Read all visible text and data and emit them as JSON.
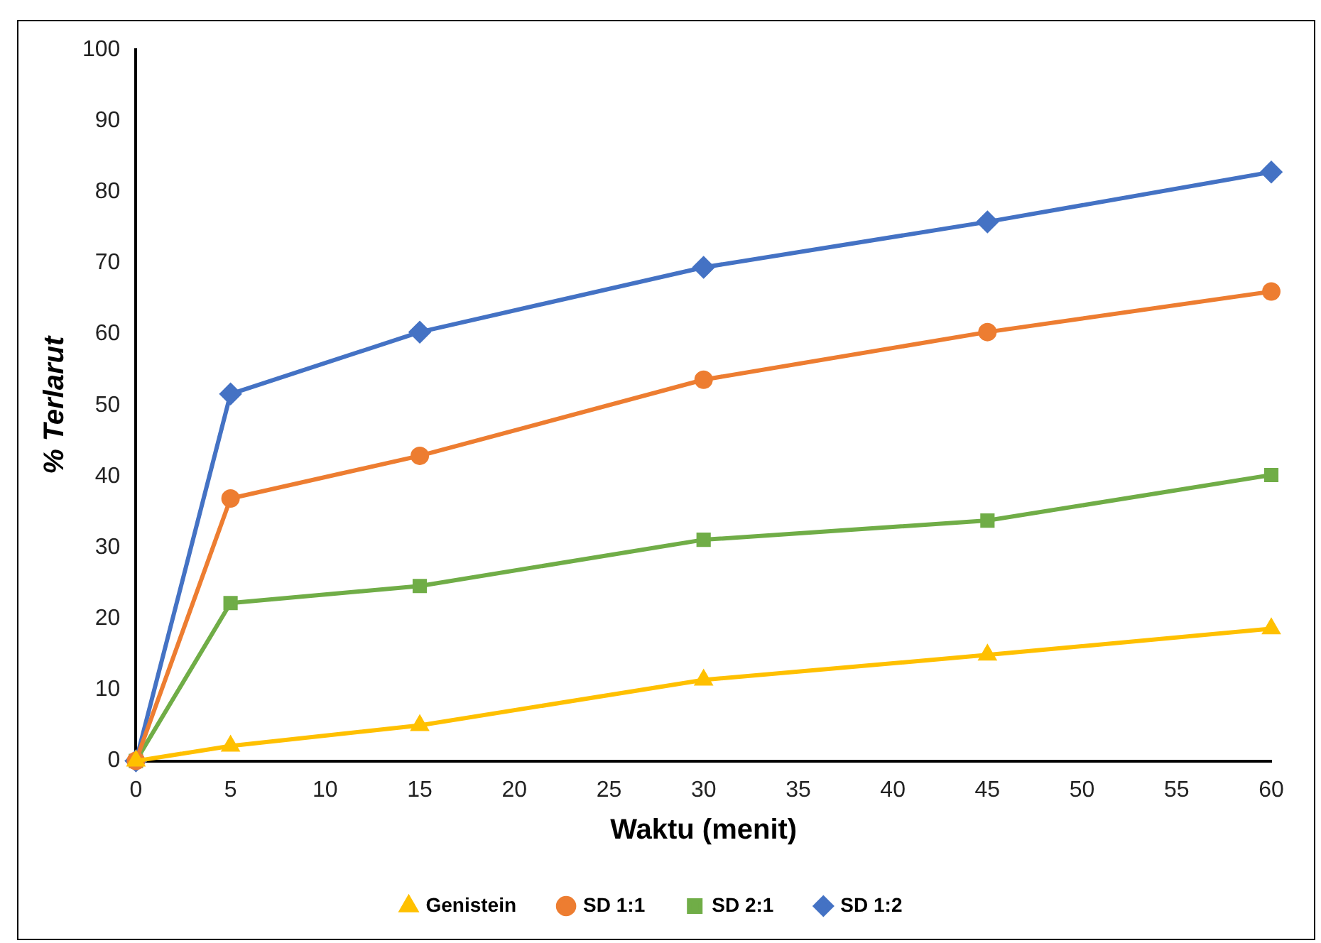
{
  "chart_data": {
    "type": "line",
    "xlabel": "Waktu (menit)",
    "ylabel": "% Terlarut",
    "x": [
      0,
      5,
      15,
      30,
      45,
      60
    ],
    "series": [
      {
        "name": "Genistein",
        "color": "#ffc000",
        "marker": "triangle",
        "values": [
          0,
          2.1,
          5,
          11.4,
          14.9,
          18.6
        ]
      },
      {
        "name": "SD 1:1",
        "color": "#ed7d31",
        "marker": "circle",
        "values": [
          0,
          36.9,
          42.9,
          53.6,
          60.3,
          66
        ]
      },
      {
        "name": "SD 2:1",
        "color": "#70ad47",
        "marker": "square",
        "values": [
          0,
          22.2,
          24.6,
          31.1,
          33.8,
          40.2
        ]
      },
      {
        "name": "SD 1:2",
        "color": "#4472c4",
        "marker": "diamond",
        "values": [
          0,
          51.6,
          60.3,
          69.4,
          75.8,
          82.8
        ]
      }
    ],
    "xlim": [
      0,
      60
    ],
    "xticks": [
      0,
      5,
      10,
      15,
      20,
      25,
      30,
      35,
      40,
      45,
      50,
      55,
      60
    ],
    "ylim": [
      0,
      100
    ],
    "yticks": [
      0,
      10,
      20,
      30,
      40,
      50,
      60,
      70,
      80,
      90,
      100
    ],
    "grid": false,
    "legend": "bottom"
  }
}
